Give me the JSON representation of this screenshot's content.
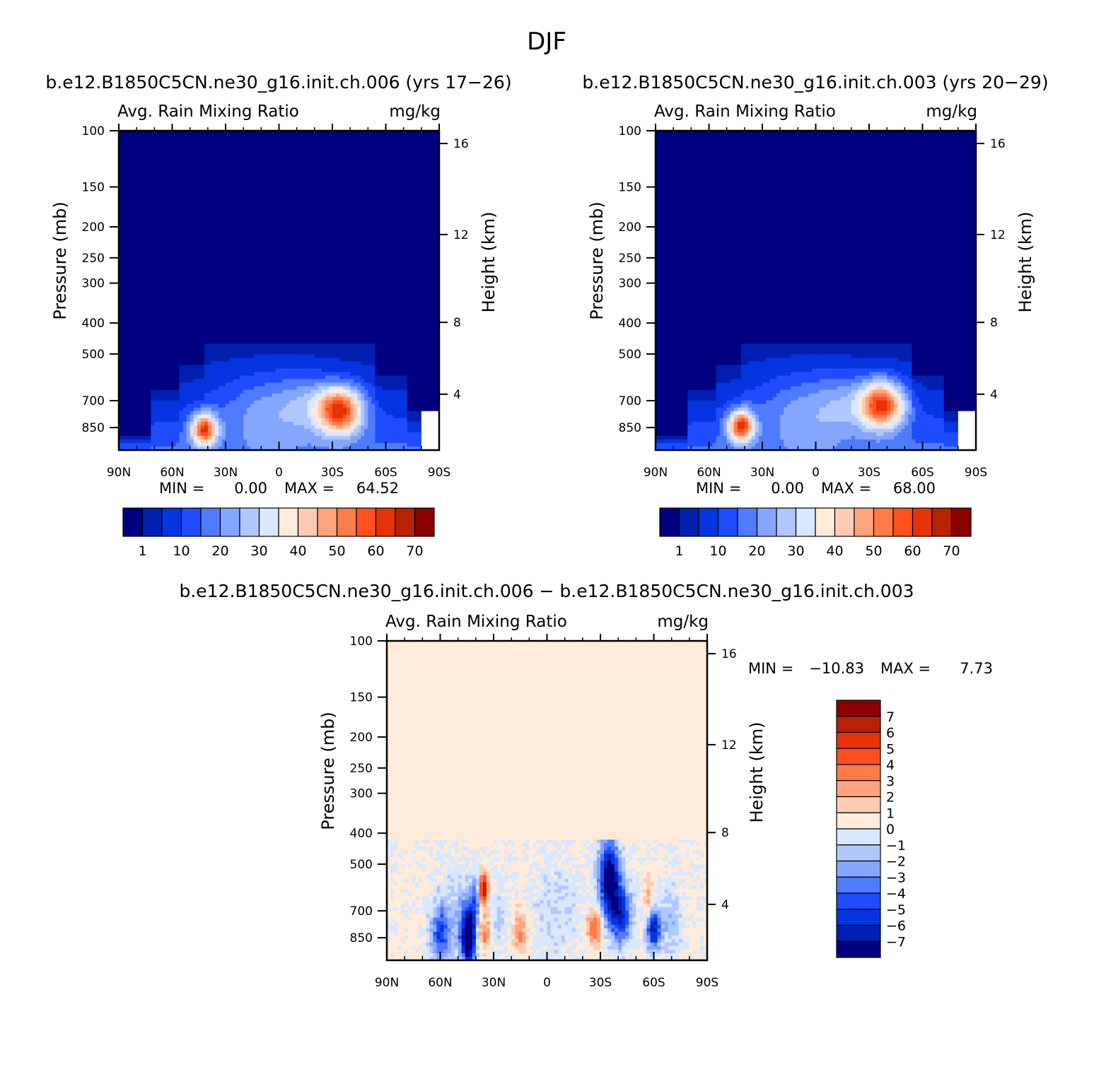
{
  "figure": {
    "title": "DJF"
  },
  "chart_data": [
    {
      "type": "heatmap",
      "id": "panel1",
      "title": "b.e12.B1850C5CN.ne30_g16.init.ch.006 (yrs 17−26)",
      "field_label": "Avg. Rain Mixing Ratio",
      "units": "mg/kg",
      "xlabel": "",
      "ylabel": "Pressure (mb)",
      "y2label": "Height (km)",
      "x_ticks": [
        "90N",
        "60N",
        "30N",
        "0",
        "30S",
        "60S",
        "90S"
      ],
      "y_ticks": [
        "100",
        "150",
        "200",
        "250",
        "300",
        "400",
        "500",
        "700",
        "850"
      ],
      "y2_ticks": [
        "16",
        "12",
        "8",
        "4"
      ],
      "x_range": [
        90,
        -90
      ],
      "y_range_mb": [
        100,
        1000
      ],
      "y_scale": "log",
      "min_label": "MIN =",
      "min_value": "0.00",
      "max_label": "MAX =",
      "max_value": "64.52",
      "colorbar_levels": [
        "1",
        "10",
        "20",
        "30",
        "40",
        "50",
        "60",
        "70"
      ],
      "colorbar_orientation": "horizontal",
      "max_center": {
        "lat": -34,
        "p": 750
      },
      "secondary_max": {
        "lat": 42,
        "p": 860,
        "value": 48
      }
    },
    {
      "type": "heatmap",
      "id": "panel2",
      "title": "b.e12.B1850C5CN.ne30_g16.init.ch.003 (yrs 20−29)",
      "field_label": "Avg. Rain Mixing Ratio",
      "units": "mg/kg",
      "xlabel": "",
      "ylabel": "Pressure (mb)",
      "y2label": "Height (km)",
      "x_ticks": [
        "90N",
        "60N",
        "30N",
        "0",
        "30S",
        "60S",
        "90S"
      ],
      "y_ticks": [
        "100",
        "150",
        "200",
        "250",
        "300",
        "400",
        "500",
        "700",
        "850"
      ],
      "y2_ticks": [
        "16",
        "12",
        "8",
        "4"
      ],
      "x_range": [
        90,
        -90
      ],
      "y_range_mb": [
        100,
        1000
      ],
      "y_scale": "log",
      "min_label": "MIN =",
      "min_value": "0.00",
      "max_label": "MAX =",
      "max_value": "68.00",
      "colorbar_levels": [
        "1",
        "10",
        "20",
        "30",
        "40",
        "50",
        "60",
        "70"
      ],
      "colorbar_orientation": "horizontal",
      "max_center": {
        "lat": -37,
        "p": 720
      },
      "secondary_max": {
        "lat": 42,
        "p": 840,
        "value": 50
      }
    },
    {
      "type": "heatmap",
      "id": "panel3",
      "title": "b.e12.B1850C5CN.ne30_g16.init.ch.006 − b.e12.B1850C5CN.ne30_g16.init.ch.003",
      "field_label": "Avg. Rain Mixing Ratio",
      "units": "mg/kg",
      "xlabel": "",
      "ylabel": "Pressure (mb)",
      "y2label": "Height (km)",
      "x_ticks": [
        "90N",
        "60N",
        "30N",
        "0",
        "30S",
        "60S",
        "90S"
      ],
      "y_ticks": [
        "100",
        "150",
        "200",
        "250",
        "300",
        "400",
        "500",
        "700",
        "850"
      ],
      "y2_ticks": [
        "16",
        "12",
        "8",
        "4"
      ],
      "x_range": [
        90,
        -90
      ],
      "y_range_mb": [
        100,
        1000
      ],
      "y_scale": "log",
      "min_label": "MIN =",
      "min_value": "−10.83",
      "max_label": "MAX =",
      "max_value": "7.73",
      "colorbar_levels": [
        "7",
        "6",
        "5",
        "4",
        "3",
        "2",
        "1",
        "0",
        "−1",
        "−2",
        "−3",
        "−4",
        "−5",
        "−6",
        "−7"
      ],
      "colorbar_orientation": "vertical"
    }
  ],
  "colors": {
    "abs_scale": [
      "#000080",
      "#001fb0",
      "#0535e0",
      "#1f4cff",
      "#4f7cff",
      "#85a6ff",
      "#b1c8ff",
      "#d9e8ff",
      "#feebda",
      "#ffcbb2",
      "#ffa47c",
      "#ff7b48",
      "#ff5020",
      "#e53307",
      "#b82200",
      "#8b0000"
    ],
    "diff_scale": [
      "#8b0000",
      "#b82200",
      "#e53307",
      "#ff5020",
      "#ff7b48",
      "#ffa47c",
      "#ffcbb2",
      "#feebda",
      "#d9e8ff",
      "#b1c8ff",
      "#85a6ff",
      "#4f7cff",
      "#1f4cff",
      "#0535e0",
      "#001fb0",
      "#000080"
    ],
    "diff_background": "#feebda"
  }
}
